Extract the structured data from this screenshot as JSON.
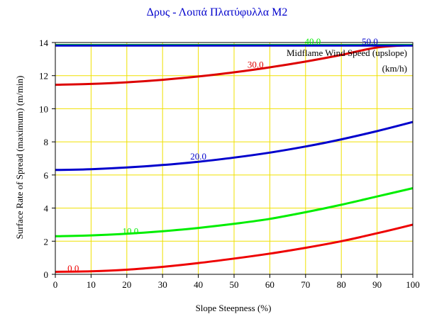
{
  "chart_data": {
    "type": "line",
    "title": "Δρυς - Λοιπά Πλατύφυλλα M2",
    "xlabel": "Slope Steepness (%)",
    "ylabel": "Surface Rate of Spread (maximum) (m/min)",
    "xlim": [
      0,
      100
    ],
    "ylim": [
      0,
      14
    ],
    "xticks": [
      0,
      10,
      20,
      30,
      40,
      50,
      60,
      70,
      80,
      90,
      100
    ],
    "yticks": [
      0,
      2,
      4,
      6,
      8,
      10,
      12,
      14
    ],
    "grid": true,
    "legend": {
      "title_line1": "Midflame Wind Speed (upslope)",
      "title_line2": "(km/h)",
      "placement": "top-right"
    },
    "x": [
      0,
      10,
      20,
      30,
      40,
      50,
      60,
      70,
      80,
      90,
      100
    ],
    "series": [
      {
        "name": "0.0",
        "color": "#ee0000",
        "label_at": [
          5,
          0.35
        ],
        "values": [
          0.15,
          0.18,
          0.28,
          0.45,
          0.68,
          0.95,
          1.25,
          1.6,
          2.0,
          2.48,
          3.0
        ]
      },
      {
        "name": "10.0",
        "color": "#00ee00",
        "label_at": [
          21,
          2.6
        ],
        "values": [
          2.3,
          2.35,
          2.45,
          2.6,
          2.8,
          3.05,
          3.35,
          3.75,
          4.2,
          4.7,
          5.2
        ]
      },
      {
        "name": "20.0",
        "color": "#0000cc",
        "label_at": [
          40,
          7.1
        ],
        "values": [
          6.3,
          6.35,
          6.45,
          6.6,
          6.8,
          7.05,
          7.35,
          7.72,
          8.15,
          8.65,
          9.2
        ]
      },
      {
        "name": "30.0",
        "color": "#dd0000",
        "label_at": [
          56,
          12.65
        ],
        "values": [
          11.45,
          11.5,
          11.6,
          11.75,
          11.95,
          12.2,
          12.5,
          12.85,
          13.25,
          13.7,
          13.85
        ]
      },
      {
        "name": "40.0",
        "color": "#00ee00",
        "label_at": [
          72,
          14.05
        ],
        "values": [
          13.85,
          13.85,
          13.85,
          13.85,
          13.85,
          13.85,
          13.85,
          13.85,
          13.85,
          13.85,
          13.85
        ]
      },
      {
        "name": "50.0",
        "color": "#0000cc",
        "label_at": [
          88,
          14.05
        ],
        "values": [
          13.82,
          13.82,
          13.82,
          13.82,
          13.82,
          13.82,
          13.82,
          13.82,
          13.82,
          13.82,
          13.82
        ]
      }
    ],
    "colors": {
      "grid": "#f0e000",
      "axis": "#000000",
      "title": "#0000cc"
    }
  }
}
